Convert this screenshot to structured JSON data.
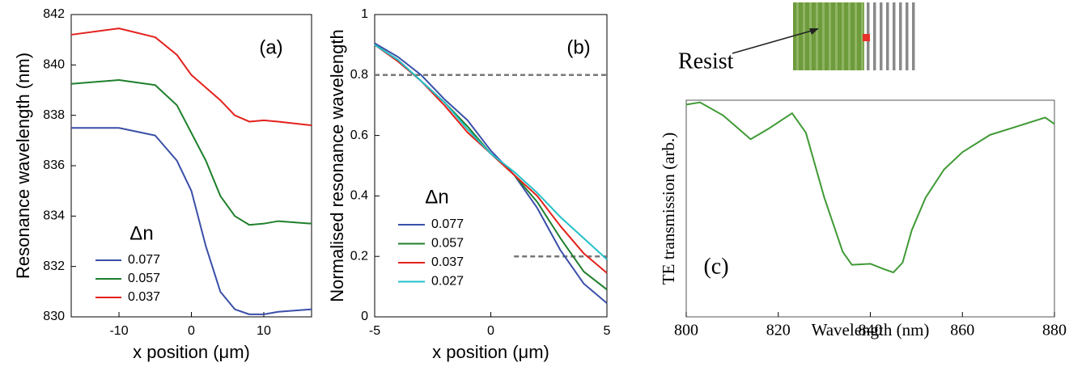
{
  "chart_data": [
    {
      "type": "line",
      "annotation": "(a)",
      "x_label": "x position (μm)",
      "y_label": "Resonance wavelength (nm)",
      "legend_title": "Δn",
      "x": [
        -16.6,
        -10,
        -5,
        -2,
        0,
        2,
        4,
        6,
        8,
        10,
        12,
        16.6
      ],
      "series": [
        {
          "name": "0.077",
          "color": "#3a4fa8",
          "values": [
            837.5,
            837.5,
            837.2,
            836.2,
            835.0,
            832.8,
            831.0,
            830.3,
            830.1,
            830.1,
            830.2,
            830.3
          ]
        },
        {
          "name": "0.057",
          "color": "#1f7f2c",
          "values": [
            839.25,
            839.4,
            839.2,
            838.4,
            837.3,
            836.2,
            834.8,
            834.0,
            833.65,
            833.7,
            833.8,
            833.7
          ]
        },
        {
          "name": "0.037",
          "color": "#e3211c",
          "values": [
            841.2,
            841.45,
            841.1,
            840.4,
            839.6,
            839.1,
            838.6,
            838.0,
            837.75,
            837.8,
            837.75,
            837.6
          ]
        }
      ],
      "xlim": [
        -16.6,
        16.6
      ],
      "xticks": [
        -10,
        0,
        10
      ],
      "ylim": [
        830,
        842
      ],
      "yticks": [
        830,
        832,
        834,
        836,
        838,
        840,
        842
      ]
    },
    {
      "type": "line",
      "annotation": "(b)",
      "x_label": "x position (μm)",
      "y_label": "Normalised resonance wavelength",
      "legend_title": "Δn",
      "x": [
        -5,
        -4,
        -3,
        -2,
        -1,
        0,
        1,
        2,
        3,
        4,
        5
      ],
      "series": [
        {
          "name": "0.077",
          "color": "#3a4fa8",
          "values": [
            0.905,
            0.86,
            0.8,
            0.72,
            0.65,
            0.55,
            0.47,
            0.36,
            0.22,
            0.11,
            0.045
          ]
        },
        {
          "name": "0.057",
          "color": "#1f7f2c",
          "values": [
            0.9,
            0.85,
            0.78,
            0.71,
            0.63,
            0.54,
            0.47,
            0.38,
            0.26,
            0.15,
            0.09
          ]
        },
        {
          "name": "0.037",
          "color": "#e3211c",
          "values": [
            0.9,
            0.845,
            0.78,
            0.7,
            0.61,
            0.54,
            0.47,
            0.4,
            0.3,
            0.21,
            0.145
          ]
        },
        {
          "name": "0.027",
          "color": "#22c0c8",
          "values": [
            0.9,
            0.85,
            0.78,
            0.71,
            0.62,
            0.54,
            0.48,
            0.41,
            0.33,
            0.26,
            0.19
          ]
        }
      ],
      "hlines": [
        {
          "y": 0.8,
          "xmin": -5,
          "xmax": 5
        },
        {
          "y": 0.2,
          "xmin": 1,
          "xmax": 5
        }
      ],
      "xlim": [
        -5,
        5
      ],
      "xticks": [
        -5,
        0,
        5
      ],
      "ylim": [
        0,
        1
      ],
      "yticks": [
        0,
        0.2,
        0.4,
        0.6,
        0.8,
        1
      ]
    },
    {
      "type": "line",
      "annotation": "(c)",
      "x_label": "Wavelength (nm)",
      "y_label": "TE transmission (arb.)",
      "x": [
        800,
        803,
        808,
        814,
        818,
        823,
        826,
        830,
        834,
        836,
        840,
        843,
        845,
        847,
        849,
        852,
        856,
        860,
        866,
        872,
        878,
        880
      ],
      "series": [
        {
          "color": "#3f9a35",
          "values": [
            0.98,
            0.99,
            0.93,
            0.82,
            0.87,
            0.94,
            0.85,
            0.55,
            0.3,
            0.24,
            0.245,
            0.22,
            0.205,
            0.25,
            0.4,
            0.55,
            0.68,
            0.76,
            0.84,
            0.88,
            0.92,
            0.89
          ]
        }
      ],
      "xlim": [
        800,
        880
      ],
      "xticks": [
        800,
        820,
        840,
        860,
        880
      ],
      "ylim": [
        0,
        1
      ]
    }
  ],
  "inset": {
    "label": "Resist"
  }
}
